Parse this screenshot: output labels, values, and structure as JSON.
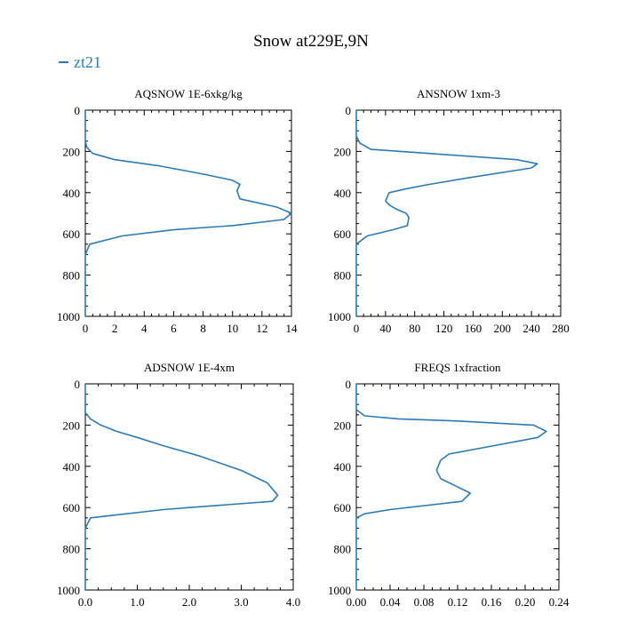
{
  "figure": {
    "title": "Snow at229E,9N",
    "legend_label": "zt21",
    "series_color": "#2e7bb4"
  },
  "chart_data": [
    {
      "type": "line",
      "title": "AQSNOW  1E-6xkg/kg",
      "xlim": [
        0,
        14
      ],
      "ylim": [
        1000,
        0
      ],
      "y_inverted": true,
      "xticks": [
        0,
        2,
        4,
        6,
        8,
        10,
        12,
        14
      ],
      "xtick_labels": [
        "0",
        "2",
        "4",
        "6",
        "8",
        "10",
        "12",
        "14"
      ],
      "yticks": [
        0,
        200,
        400,
        600,
        800,
        1000
      ],
      "ytick_labels": [
        "0",
        "200",
        "400",
        "600",
        "800",
        "1000"
      ],
      "series": [
        {
          "x": [
            0,
            0,
            0.1,
            0.5,
            2,
            5,
            8,
            10,
            10.5,
            10.3,
            10.4,
            10.5,
            13,
            14,
            13.5,
            10,
            6,
            2.5,
            0.3,
            0,
            0
          ],
          "y": [
            0,
            150,
            180,
            210,
            240,
            270,
            310,
            340,
            360,
            390,
            410,
            430,
            470,
            500,
            530,
            560,
            580,
            610,
            650,
            700,
            1000
          ]
        }
      ]
    },
    {
      "type": "line",
      "title": "ANSNOW  1xm-3",
      "xlim": [
        0,
        280
      ],
      "ylim": [
        1000,
        0
      ],
      "y_inverted": true,
      "xticks": [
        0,
        40,
        80,
        120,
        160,
        200,
        240,
        280
      ],
      "xtick_labels": [
        "0",
        "40",
        "80",
        "120",
        "160",
        "200",
        "240",
        "280"
      ],
      "yticks": [
        0,
        200,
        400,
        600,
        800,
        1000
      ],
      "ytick_labels": [
        "0",
        "200",
        "400",
        "600",
        "800",
        "1000"
      ],
      "series": [
        {
          "x": [
            0,
            0,
            5,
            20,
            100,
            220,
            248,
            240,
            150,
            100,
            70,
            45,
            40,
            45,
            55,
            68,
            72,
            70,
            50,
            15,
            0,
            0
          ],
          "y": [
            0,
            125,
            160,
            190,
            210,
            240,
            260,
            280,
            330,
            360,
            380,
            400,
            440,
            460,
            480,
            500,
            520,
            560,
            580,
            610,
            650,
            1000
          ]
        }
      ]
    },
    {
      "type": "line",
      "title": "ADSNOW  1E-4xm",
      "xlim": [
        0,
        4
      ],
      "ylim": [
        1000,
        0
      ],
      "y_inverted": true,
      "xticks": [
        0,
        1,
        2,
        3,
        4
      ],
      "xtick_labels": [
        "0.0",
        "1.0",
        "2.0",
        "3.0",
        "4.0"
      ],
      "yticks": [
        0,
        200,
        400,
        600,
        800,
        1000
      ],
      "ytick_labels": [
        "0",
        "200",
        "400",
        "600",
        "800",
        "1000"
      ],
      "series": [
        {
          "x": [
            0,
            0,
            0.1,
            0.3,
            0.6,
            1.0,
            1.5,
            2.2,
            3.0,
            3.5,
            3.7,
            3.6,
            2.0,
            1.5,
            0.1,
            0,
            0
          ],
          "y": [
            0,
            140,
            170,
            200,
            230,
            260,
            300,
            350,
            420,
            480,
            540,
            570,
            600,
            610,
            650,
            700,
            1000
          ]
        }
      ]
    },
    {
      "type": "line",
      "title": "FREQS  1xfraction",
      "xlim": [
        0,
        0.24
      ],
      "ylim": [
        1000,
        0
      ],
      "y_inverted": true,
      "xticks": [
        0,
        0.04,
        0.08,
        0.12,
        0.16,
        0.2,
        0.24
      ],
      "xtick_labels": [
        "0.00",
        "0.04",
        "0.08",
        "0.12",
        "0.16",
        "0.20",
        "0.24"
      ],
      "yticks": [
        0,
        200,
        400,
        600,
        800,
        1000
      ],
      "ytick_labels": [
        "0",
        "200",
        "400",
        "600",
        "800",
        "1000"
      ],
      "series": [
        {
          "x": [
            0,
            0,
            0.01,
            0.05,
            0.12,
            0.21,
            0.225,
            0.215,
            0.15,
            0.11,
            0.1,
            0.095,
            0.1,
            0.115,
            0.135,
            0.125,
            0.04,
            0.01,
            0,
            0
          ],
          "y": [
            0,
            125,
            155,
            170,
            180,
            200,
            230,
            260,
            310,
            340,
            370,
            420,
            460,
            490,
            530,
            570,
            610,
            630,
            650,
            1000
          ]
        }
      ]
    }
  ]
}
